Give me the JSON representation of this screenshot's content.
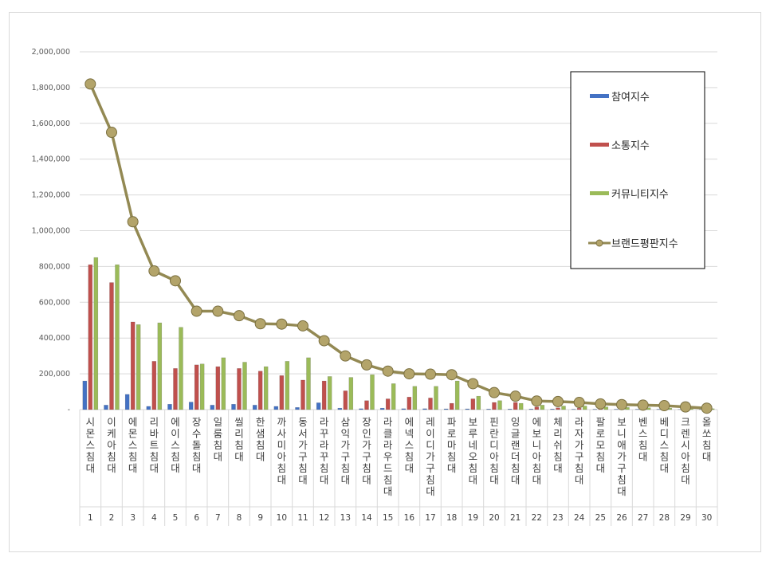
{
  "chart_data": {
    "type": "bar",
    "title": "",
    "xlabel": "",
    "ylabel": "",
    "ylim": [
      0,
      2000000
    ],
    "yticks": [
      0,
      200000,
      400000,
      600000,
      800000,
      1000000,
      1200000,
      1400000,
      1600000,
      1800000,
      2000000
    ],
    "ytick_labels": [
      "-",
      "200,000",
      "400,000",
      "600,000",
      "800,000",
      "1,000,000",
      "1,200,000",
      "1,400,000",
      "1,600,000",
      "1,800,000",
      "2,000,000"
    ],
    "grid": true,
    "legend_position": "right",
    "ranks": [
      "1",
      "2",
      "3",
      "4",
      "5",
      "6",
      "7",
      "8",
      "9",
      "10",
      "11",
      "12",
      "13",
      "14",
      "15",
      "16",
      "17",
      "18",
      "19",
      "20",
      "21",
      "22",
      "23",
      "24",
      "25",
      "26",
      "27",
      "28",
      "29",
      "30"
    ],
    "categories": [
      "시몬스침대",
      "이케아침대",
      "에몬스침대",
      "리바트침대",
      "에이스침대",
      "장수돌침대",
      "일룸침대",
      "씰리침대",
      "한샘침대",
      "까사미아침대",
      "동서가구침대",
      "라꾸라꾸침대",
      "삼익가구침대",
      "장인가구침대",
      "라클라우드침대",
      "에넥스침대",
      "레이디가구침대",
      "파로마침대",
      "보루네오침대",
      "핀란디아침대",
      "잉글랜더침대",
      "에보니아침대",
      "체리쉬침대",
      "라자가구침대",
      "팔로모침대",
      "보니애가구침대",
      "벤스침대",
      "베디스침대",
      "크렌시아침대",
      "올쏘침대"
    ],
    "series": [
      {
        "name": "참여지수",
        "kind": "bar",
        "color": "#4472c4",
        "values": [
          160000,
          25000,
          85000,
          18000,
          30000,
          42000,
          25000,
          30000,
          25000,
          18000,
          12000,
          38000,
          8000,
          5000,
          8000,
          5000,
          5000,
          4000,
          4000,
          3000,
          3000,
          3000,
          3000,
          2000,
          2000,
          2000,
          2000,
          2000,
          1000,
          1000
        ]
      },
      {
        "name": "소통지수",
        "kind": "bar",
        "color": "#c0504d",
        "values": [
          810000,
          710000,
          490000,
          270000,
          230000,
          250000,
          240000,
          230000,
          215000,
          190000,
          165000,
          160000,
          105000,
          50000,
          60000,
          70000,
          65000,
          35000,
          60000,
          40000,
          40000,
          15000,
          10000,
          8000,
          5000,
          5000,
          5000,
          4000,
          3000,
          3000
        ]
      },
      {
        "name": "커뮤니티지수",
        "kind": "bar",
        "color": "#9bbb59",
        "values": [
          850000,
          810000,
          475000,
          485000,
          460000,
          255000,
          290000,
          265000,
          240000,
          270000,
          290000,
          185000,
          180000,
          195000,
          145000,
          130000,
          130000,
          160000,
          75000,
          50000,
          35000,
          25000,
          20000,
          20000,
          15000,
          12000,
          10000,
          8000,
          6000,
          5000
        ]
      },
      {
        "name": "브랜드평판지수",
        "kind": "line",
        "color": "#938953",
        "values": [
          1820000,
          1550000,
          1050000,
          775000,
          720000,
          550000,
          550000,
          525000,
          480000,
          478000,
          468000,
          385000,
          300000,
          250000,
          215000,
          200000,
          198000,
          195000,
          145000,
          95000,
          75000,
          48000,
          45000,
          40000,
          32000,
          28000,
          25000,
          22000,
          15000,
          8000
        ]
      }
    ]
  }
}
